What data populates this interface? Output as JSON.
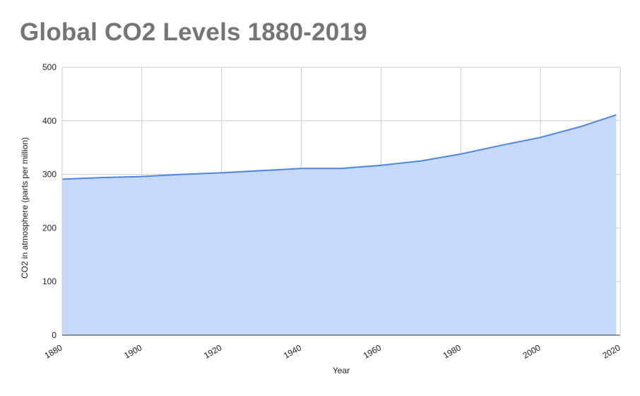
{
  "chart_data": {
    "type": "area",
    "title": "Global CO2 Levels 1880-2019",
    "xlabel": "Year",
    "ylabel": "CO2 in atmosphere (parts per million)",
    "xlim": [
      1880,
      2020
    ],
    "ylim": [
      0,
      500
    ],
    "x_ticks": [
      "1880",
      "1900",
      "1920",
      "1940",
      "1960",
      "1980",
      "2000",
      "2020"
    ],
    "y_ticks": [
      "0",
      "100",
      "200",
      "300",
      "400",
      "500"
    ],
    "x_tick_values": [
      1880,
      1900,
      1920,
      1940,
      1960,
      1980,
      2000,
      2020
    ],
    "y_tick_values": [
      0,
      100,
      200,
      300,
      400,
      500
    ],
    "grid": true,
    "series": [
      {
        "x": [
          1880,
          1890,
          1900,
          1910,
          1920,
          1930,
          1940,
          1950,
          1960,
          1970,
          1980,
          1990,
          2000,
          2010,
          2019
        ],
        "values": [
          291,
          294,
          296,
          300,
          303,
          307,
          311,
          311,
          317,
          325,
          338,
          354,
          369,
          389,
          411
        ],
        "line_color": "#4a86e8",
        "fill_color": "#c6d9f8"
      }
    ]
  }
}
